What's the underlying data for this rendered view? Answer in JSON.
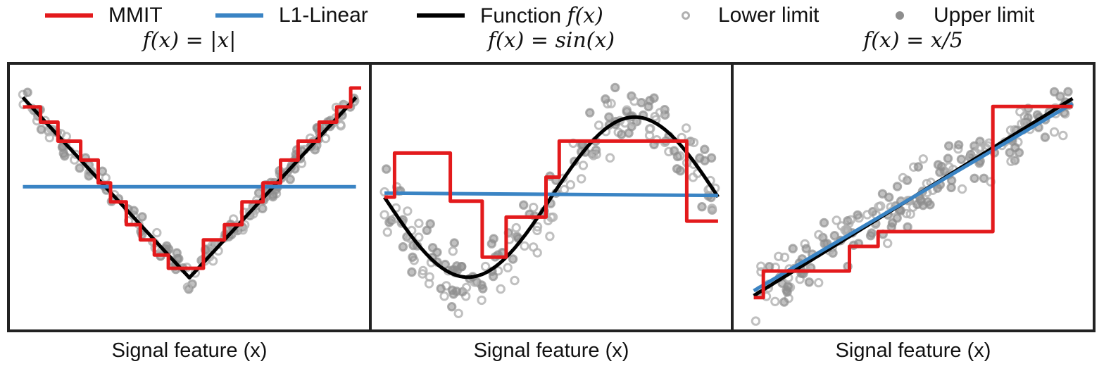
{
  "legend": {
    "items": [
      {
        "label": "MMIT",
        "type": "line",
        "color": "#e31a1c"
      },
      {
        "label": "L1-Linear",
        "type": "line",
        "color": "#3a84c4"
      },
      {
        "label": "Function",
        "math": "f(x)",
        "type": "line",
        "color": "#000000"
      },
      {
        "label": "Lower limit",
        "type": "open-circle",
        "color": "#b0b0b0"
      },
      {
        "label": "Upper limit",
        "type": "filled-circle",
        "color": "#8e8e8e"
      }
    ]
  },
  "colors": {
    "mmit": "#e31a1c",
    "l1_linear": "#3a84c4",
    "function": "#000000",
    "lower_limit": "#b0b0b0",
    "upper_limit": "#8e8e8e",
    "frame": "#222222"
  },
  "chart_data": [
    {
      "type": "line",
      "title": "f(x) = |x|",
      "xlabel": "Signal feature (x)",
      "ylabel": "",
      "xlim": [
        -1,
        1
      ],
      "ylim": [
        -0.25,
        1.1
      ],
      "grid": false,
      "series": [
        {
          "name": "Function f(x)",
          "x": [
            -0.95,
            -0.85,
            -0.6,
            -0.3,
            -0.1,
            0.1,
            0.3,
            0.6,
            0.85,
            0.95
          ],
          "y": [
            0.95,
            0.85,
            0.6,
            0.3,
            0.1,
            0.1,
            0.3,
            0.6,
            0.85,
            0.95
          ]
        },
        {
          "name": "MMIT",
          "x": [
            -0.95,
            -0.85,
            -0.85,
            -0.75,
            -0.75,
            -0.62,
            -0.62,
            -0.52,
            -0.52,
            -0.45,
            -0.45,
            -0.36,
            -0.36,
            -0.28,
            -0.28,
            -0.2,
            -0.2,
            -0.12,
            -0.12,
            0.08,
            0.08,
            0.2,
            0.2,
            0.3,
            0.3,
            0.42,
            0.42,
            0.52,
            0.52,
            0.62,
            0.62,
            0.74,
            0.74,
            0.84,
            0.84,
            0.92,
            0.92,
            0.98
          ],
          "y": [
            0.9,
            0.9,
            0.82,
            0.82,
            0.72,
            0.72,
            0.62,
            0.62,
            0.5,
            0.5,
            0.4,
            0.4,
            0.28,
            0.28,
            0.2,
            0.2,
            0.12,
            0.12,
            0.05,
            0.05,
            0.2,
            0.2,
            0.28,
            0.28,
            0.4,
            0.4,
            0.5,
            0.5,
            0.62,
            0.62,
            0.72,
            0.72,
            0.82,
            0.82,
            0.9,
            0.9,
            1.0,
            1.0
          ]
        },
        {
          "name": "L1-Linear",
          "x": [
            -0.95,
            0.95
          ],
          "y": [
            0.48,
            0.48
          ]
        }
      ]
    },
    {
      "type": "line",
      "title": "f(x) = sin(x)",
      "xlabel": "Signal feature (x)",
      "ylabel": "",
      "xlim": [
        -3.3,
        3.3
      ],
      "ylim": [
        -1.6,
        1.6
      ],
      "grid": false,
      "series": [
        {
          "name": "Function f(x)",
          "x": [
            -3.14,
            -2.36,
            -1.57,
            -0.79,
            0.0,
            0.79,
            1.57,
            2.36,
            3.14
          ],
          "y": [
            0.0,
            -0.71,
            -1.0,
            -0.71,
            0.0,
            0.71,
            1.0,
            0.71,
            0.0
          ]
        },
        {
          "name": "MMIT",
          "x": [
            -3.14,
            -2.95,
            -2.95,
            -1.9,
            -1.9,
            -1.3,
            -1.3,
            -0.85,
            -0.85,
            -0.1,
            -0.1,
            0.15,
            0.15,
            2.55,
            2.55,
            3.14
          ],
          "y": [
            0.0,
            0.0,
            0.55,
            0.55,
            -0.05,
            -0.05,
            -0.75,
            -0.75,
            -0.25,
            -0.25,
            0.25,
            0.25,
            0.7,
            0.7,
            -0.3,
            -0.3
          ]
        },
        {
          "name": "L1-Linear",
          "x": [
            -3.14,
            3.14
          ],
          "y": [
            0.05,
            0.02
          ]
        }
      ]
    },
    {
      "type": "line",
      "title": "f(x) = x/5",
      "xlabel": "Signal feature (x)",
      "ylabel": "",
      "xlim": [
        -5.5,
        5.5
      ],
      "ylim": [
        -1.3,
        1.3
      ],
      "grid": false,
      "series": [
        {
          "name": "Function f(x)",
          "x": [
            -5.0,
            5.0
          ],
          "y": [
            -1.0,
            1.0
          ]
        },
        {
          "name": "MMIT",
          "x": [
            -5.0,
            -4.7,
            -4.7,
            -2.0,
            -2.0,
            -1.1,
            -1.1,
            2.5,
            2.5,
            5.0
          ],
          "y": [
            -1.02,
            -1.02,
            -0.75,
            -0.75,
            -0.5,
            -0.5,
            -0.35,
            -0.35,
            0.92,
            0.92
          ]
        },
        {
          "name": "L1-Linear",
          "x": [
            -5.0,
            5.0
          ],
          "y": [
            -0.95,
            0.95
          ]
        }
      ]
    }
  ]
}
